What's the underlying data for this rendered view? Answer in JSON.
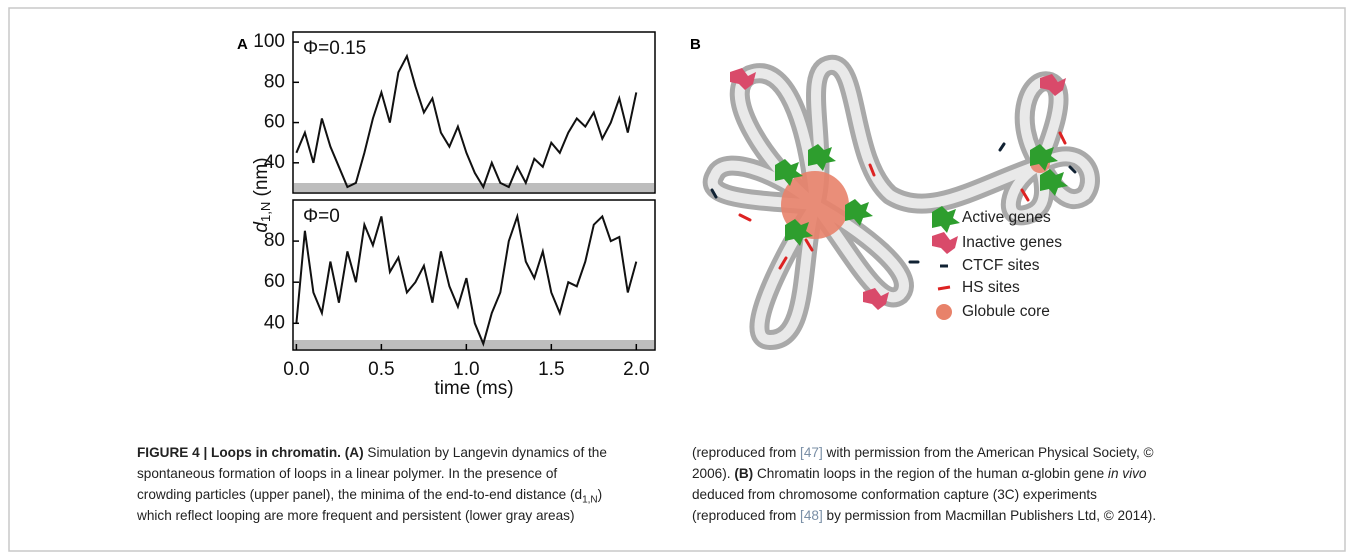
{
  "panel_labels": [
    "A",
    "B"
  ],
  "chart_data": [
    {
      "type": "line",
      "annotation": "Φ=0.15",
      "color": "#111111",
      "ylabel": "d",
      "ylabel_subscript": "1,N",
      "ylabel_unit": "(nm)",
      "x": [
        0,
        0.05,
        0.1,
        0.15,
        0.2,
        0.25,
        0.3,
        0.35,
        0.4,
        0.45,
        0.5,
        0.55,
        0.6,
        0.65,
        0.7,
        0.75,
        0.8,
        0.85,
        0.9,
        0.95,
        1,
        1.05,
        1.1,
        1.15,
        1.2,
        1.25,
        1.3,
        1.35,
        1.4,
        1.45,
        1.5,
        1.55,
        1.6,
        1.65,
        1.7,
        1.75,
        1.8,
        1.85,
        1.9,
        1.95,
        2
      ],
      "series": [
        {
          "name": "Φ=0.15",
          "color": "#111111",
          "values": [
            45,
            55,
            40,
            62,
            48,
            38,
            28,
            30,
            45,
            62,
            75,
            60,
            85,
            93,
            78,
            65,
            72,
            55,
            48,
            58,
            45,
            35,
            28,
            40,
            30,
            28,
            38,
            30,
            42,
            38,
            50,
            45,
            55,
            62,
            58,
            65,
            52,
            60,
            72,
            55,
            75
          ]
        }
      ],
      "xlim": [
        -0.02,
        2.11
      ],
      "ylim": [
        25,
        105
      ],
      "yticks": [
        40,
        60,
        80,
        100
      ]
    },
    {
      "type": "line",
      "annotation": "Φ=0",
      "color": "#111111",
      "x": [
        0,
        0.05,
        0.1,
        0.15,
        0.2,
        0.25,
        0.3,
        0.35,
        0.4,
        0.45,
        0.5,
        0.55,
        0.6,
        0.65,
        0.7,
        0.75,
        0.8,
        0.85,
        0.9,
        0.95,
        1,
        1.05,
        1.1,
        1.15,
        1.2,
        1.25,
        1.3,
        1.35,
        1.4,
        1.45,
        1.5,
        1.55,
        1.6,
        1.65,
        1.7,
        1.75,
        1.8,
        1.85,
        1.9,
        1.95,
        2
      ],
      "series": [
        {
          "name": "Φ=0",
          "color": "#111111",
          "values": [
            40,
            85,
            55,
            45,
            70,
            50,
            75,
            60,
            88,
            78,
            92,
            65,
            72,
            55,
            60,
            68,
            50,
            75,
            58,
            48,
            62,
            40,
            30,
            45,
            55,
            80,
            92,
            70,
            62,
            75,
            55,
            45,
            60,
            58,
            70,
            88,
            92,
            80,
            82,
            55,
            70
          ]
        }
      ],
      "xlim": [
        -0.02,
        2.11
      ],
      "ylim": [
        27,
        100
      ],
      "yticks": [
        40,
        60,
        80
      ],
      "xticks": [
        {
          "value": 0,
          "label": "0.0"
        },
        {
          "value": 0.5,
          "label": "0.5"
        },
        {
          "value": 1,
          "label": "1.0"
        },
        {
          "value": 1.5,
          "label": "1.5"
        },
        {
          "value": 2,
          "label": "2.0"
        }
      ],
      "xlabel": "time (ms)"
    }
  ],
  "diagram": {
    "legend": [
      "Active genes",
      "Inactive genes",
      "CTCF sites",
      "HS sites",
      "Globule core"
    ]
  },
  "caption": [
    "FIGURE 4 | Loops in chromatin.",
    "(A)",
    " Simulation by Langevin dynamics of the",
    "spontaneous formation of loops in a linear polymer. In the presence of",
    "crowding particles (upper panel), the minima of the end-to-end distance (d",
    "1,N",
    ")",
    "which reflect looping are more frequent and persistent (lower gray areas)",
    "(reproduced from ",
    "[47]",
    " with permission from the American Physical Society, ©",
    "2006). ",
    "(B)",
    " Chromatin loops in the region of the human α-globin gene ",
    "in vivo",
    "deduced from chromosome conformation capture (3C) experiments",
    "(reproduced from ",
    "[48]",
    " by permission from Macmillan Publishers Ltd, © 2014)."
  ]
}
